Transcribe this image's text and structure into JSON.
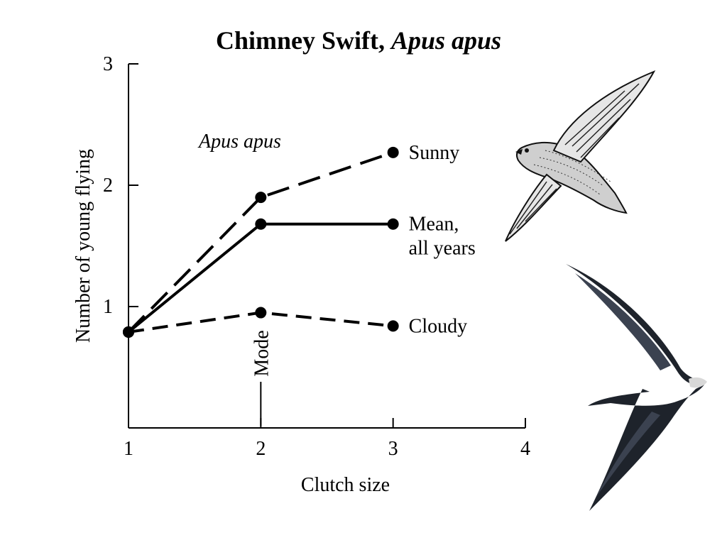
{
  "slide": {
    "title_plain": "Chimney Swift, ",
    "title_italic": "Apus apus"
  },
  "chart_data": {
    "type": "line",
    "title": "",
    "annotation_species": "Apus apus",
    "xlabel": "Clutch size",
    "ylabel": "Number of young flying",
    "xlim": [
      1,
      4
    ],
    "ylim": [
      0,
      3
    ],
    "xticks": [
      "1",
      "2",
      "3",
      "4"
    ],
    "yticks": [
      "1",
      "2",
      "3"
    ],
    "grid": false,
    "mode_label": "Mode",
    "mode_x": 2,
    "series": [
      {
        "name": "Sunny",
        "style": "long-dash",
        "x": [
          1,
          2,
          3
        ],
        "y": [
          0.79,
          1.9,
          2.27
        ]
      },
      {
        "name": "Mean, all years",
        "label_lines": [
          "Mean,",
          "all years"
        ],
        "style": "solid",
        "x": [
          1,
          2,
          3
        ],
        "y": [
          0.79,
          1.68,
          1.68
        ]
      },
      {
        "name": "Cloudy",
        "style": "short-dash",
        "x": [
          1,
          2,
          3
        ],
        "y": [
          0.79,
          0.95,
          0.84
        ]
      }
    ]
  },
  "illustrations": {
    "upper_bird": "swift-drawing-icon",
    "lower_bird": "swift-photo-icon"
  },
  "colors": {
    "line": "#000000",
    "bird_dark": "#1e232b",
    "bird_mid": "#3b4250"
  }
}
